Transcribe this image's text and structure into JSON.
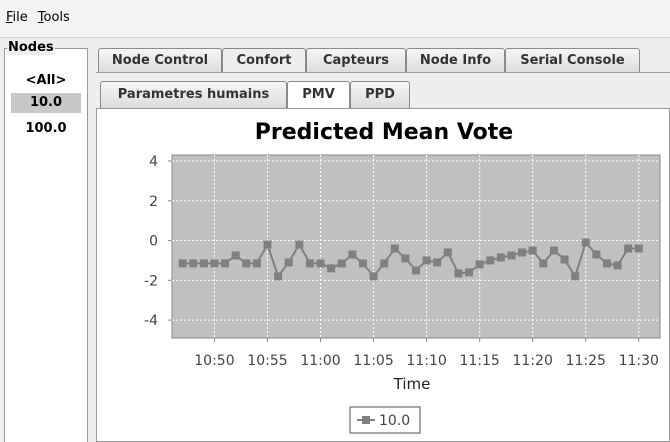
{
  "menu": [
    "File",
    "Tools"
  ],
  "nodes": {
    "title": "Nodes",
    "items": [
      "<All>",
      "10.0",
      "100.0"
    ],
    "selected": 1
  },
  "tabs": {
    "items": [
      "Node Control",
      "Confort",
      "Capteurs",
      "Node Info",
      "Serial Console"
    ],
    "selected": 1
  },
  "subtabs": {
    "items": [
      "Parametres humains",
      "PMV",
      "PPD"
    ],
    "selected": 1
  },
  "chart_data": {
    "type": "line",
    "title": "Predicted Mean Vote",
    "x_label": "Time",
    "x": [
      "10:47",
      "10:48",
      "10:49",
      "10:50",
      "10:51",
      "10:52",
      "10:53",
      "10:54",
      "10:55",
      "10:56",
      "10:57",
      "10:58",
      "10:59",
      "11:00",
      "11:01",
      "11:02",
      "11:03",
      "11:04",
      "11:05",
      "11:06",
      "11:07",
      "11:08",
      "11:09",
      "11:10",
      "11:11",
      "11:12",
      "11:13",
      "11:14",
      "11:15",
      "11:16",
      "11:17",
      "11:18",
      "11:19",
      "11:20",
      "11:21",
      "11:22",
      "11:23",
      "11:24",
      "11:25",
      "11:26",
      "11:27",
      "11:28",
      "11:29",
      "11:30"
    ],
    "series": [
      {
        "name": "10.0",
        "color": "#808080",
        "values": [
          -1.15,
          -1.15,
          -1.15,
          -1.15,
          -1.15,
          -0.75,
          -1.15,
          -1.15,
          -0.2,
          -1.8,
          -1.1,
          -0.2,
          -1.15,
          -1.15,
          -1.4,
          -1.15,
          -0.7,
          -1.15,
          -1.8,
          -1.15,
          -0.4,
          -0.9,
          -1.5,
          -1.0,
          -1.1,
          -0.6,
          -1.65,
          -1.6,
          -1.2,
          -1.0,
          -0.85,
          -0.75,
          -0.6,
          -0.5,
          -1.15,
          -0.5,
          -0.95,
          -1.8,
          -0.1,
          -0.7,
          -1.15,
          -1.25,
          -0.4,
          -0.4
        ]
      }
    ],
    "xlim": [
      "10:46",
      "11:32"
    ],
    "xticks": [
      "10:50",
      "10:55",
      "11:00",
      "11:05",
      "11:10",
      "11:15",
      "11:20",
      "11:25",
      "11:30"
    ],
    "ylim": [
      -4.9,
      4.3
    ],
    "yticks": [
      4,
      2,
      0,
      -2,
      -4
    ],
    "grid": true
  }
}
